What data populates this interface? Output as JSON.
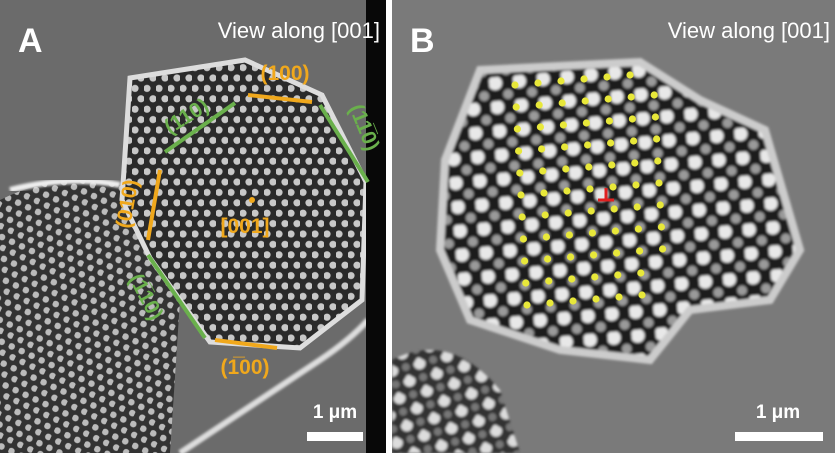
{
  "panels": [
    {
      "label": "A",
      "view": "View along [001]",
      "scale": "1 μm",
      "facets": [
        "(100)",
        "(110)",
        "(11̅0)",
        "(010)",
        "(1̅10)",
        "(1̅00)"
      ],
      "zone": "[001]"
    },
    {
      "label": "B",
      "view": "View along [001]",
      "scale": "1 μm"
    }
  ]
}
